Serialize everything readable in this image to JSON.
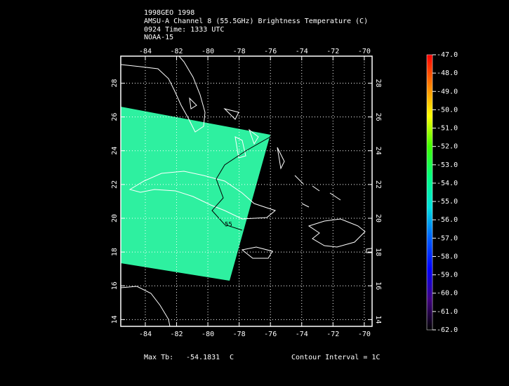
{
  "header": {
    "lines": [
      "1998GEO 1998",
      "AMSU-A Channel 8 (55.5GHz) Brightness Temperature (C)",
      "0924 Time: 1333 UTC",
      "NOAA-15"
    ]
  },
  "map": {
    "lonlim": [
      -85.57,
      -69.5
    ],
    "latlim": [
      13.6,
      29.6
    ],
    "lonticks": [
      -84,
      -82,
      -80,
      -78,
      -76,
      -74,
      -72,
      -70
    ],
    "latticks": [
      14,
      16,
      18,
      20,
      22,
      24,
      26,
      28
    ],
    "grid": true,
    "swath_color": "#2ef0a0",
    "contour_label": "55"
  },
  "colorbar": {
    "lim": [
      -62,
      -47
    ],
    "colors": [
      "#ff0000",
      "#ff8000",
      "#ffff00",
      "#40ff00",
      "#00ff80",
      "#00e0e0",
      "#0060ff",
      "#0000ff",
      "#400080",
      "#000000"
    ],
    "ticks": [
      {
        "value": -47,
        "label": "-47.0"
      },
      {
        "value": -48,
        "label": "-48.0"
      },
      {
        "value": -49,
        "label": "-49.0"
      },
      {
        "value": -50,
        "label": "-50.0"
      },
      {
        "value": -51,
        "label": "-51.0"
      },
      {
        "value": -52,
        "label": "-52.0"
      },
      {
        "value": -53,
        "label": "-53.0"
      },
      {
        "value": -54,
        "label": "-54.0"
      },
      {
        "value": -55,
        "label": "-55.0"
      },
      {
        "value": -56,
        "label": "-56.0"
      },
      {
        "value": -57,
        "label": "-57.0"
      },
      {
        "value": -58,
        "label": "-58.0"
      },
      {
        "value": -59,
        "label": "-59.0"
      },
      {
        "value": -60,
        "label": "-60.0"
      },
      {
        "value": -61,
        "label": "-61.0"
      },
      {
        "value": -62,
        "label": "-62.0"
      }
    ]
  },
  "footer": {
    "max_label": "Max Tb:",
    "max_value": "-54.1831",
    "max_unit": "C",
    "contour_interval": "Contour Interval = 1C"
  }
}
